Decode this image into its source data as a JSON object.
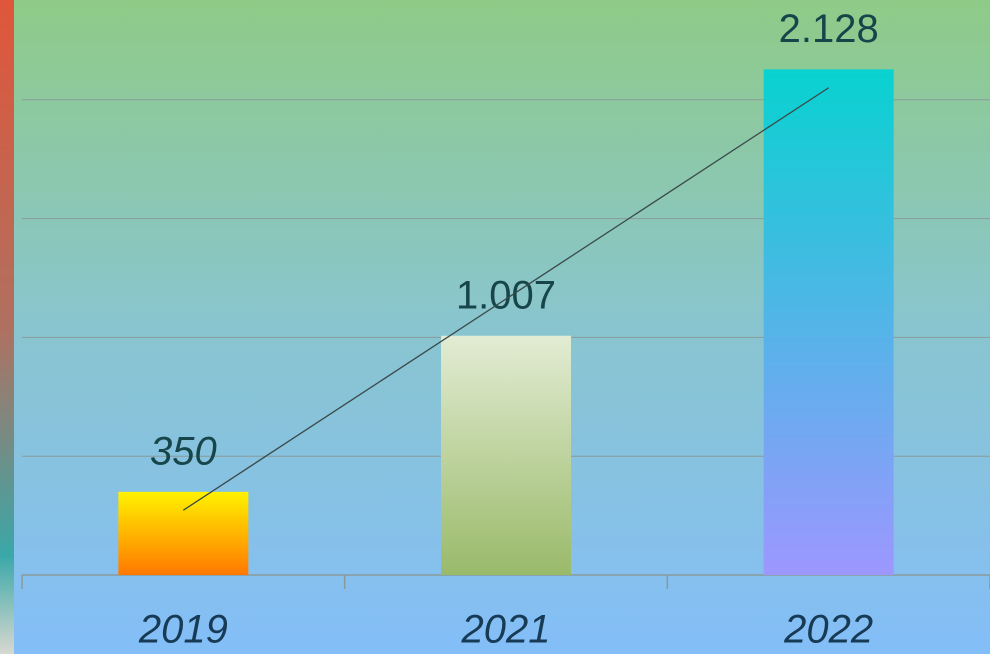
{
  "chart_data": {
    "type": "bar",
    "categories": [
      "2019",
      "2021",
      "2022"
    ],
    "values": [
      350,
      1007,
      2128
    ],
    "value_labels": [
      "350",
      "1.007",
      "2.128"
    ],
    "colors": [
      [
        "#fff200",
        "#ff7800"
      ],
      [
        "#e2ecd3",
        "#9aba6a"
      ],
      [
        "#08d2d0",
        "#9d97ff"
      ]
    ],
    "ylim": [
      0,
      2420
    ],
    "yticks": [
      0,
      500,
      1000,
      1500,
      2000
    ],
    "grid": true,
    "trendline": "linear",
    "trendline_color": "#3a4a4a"
  }
}
